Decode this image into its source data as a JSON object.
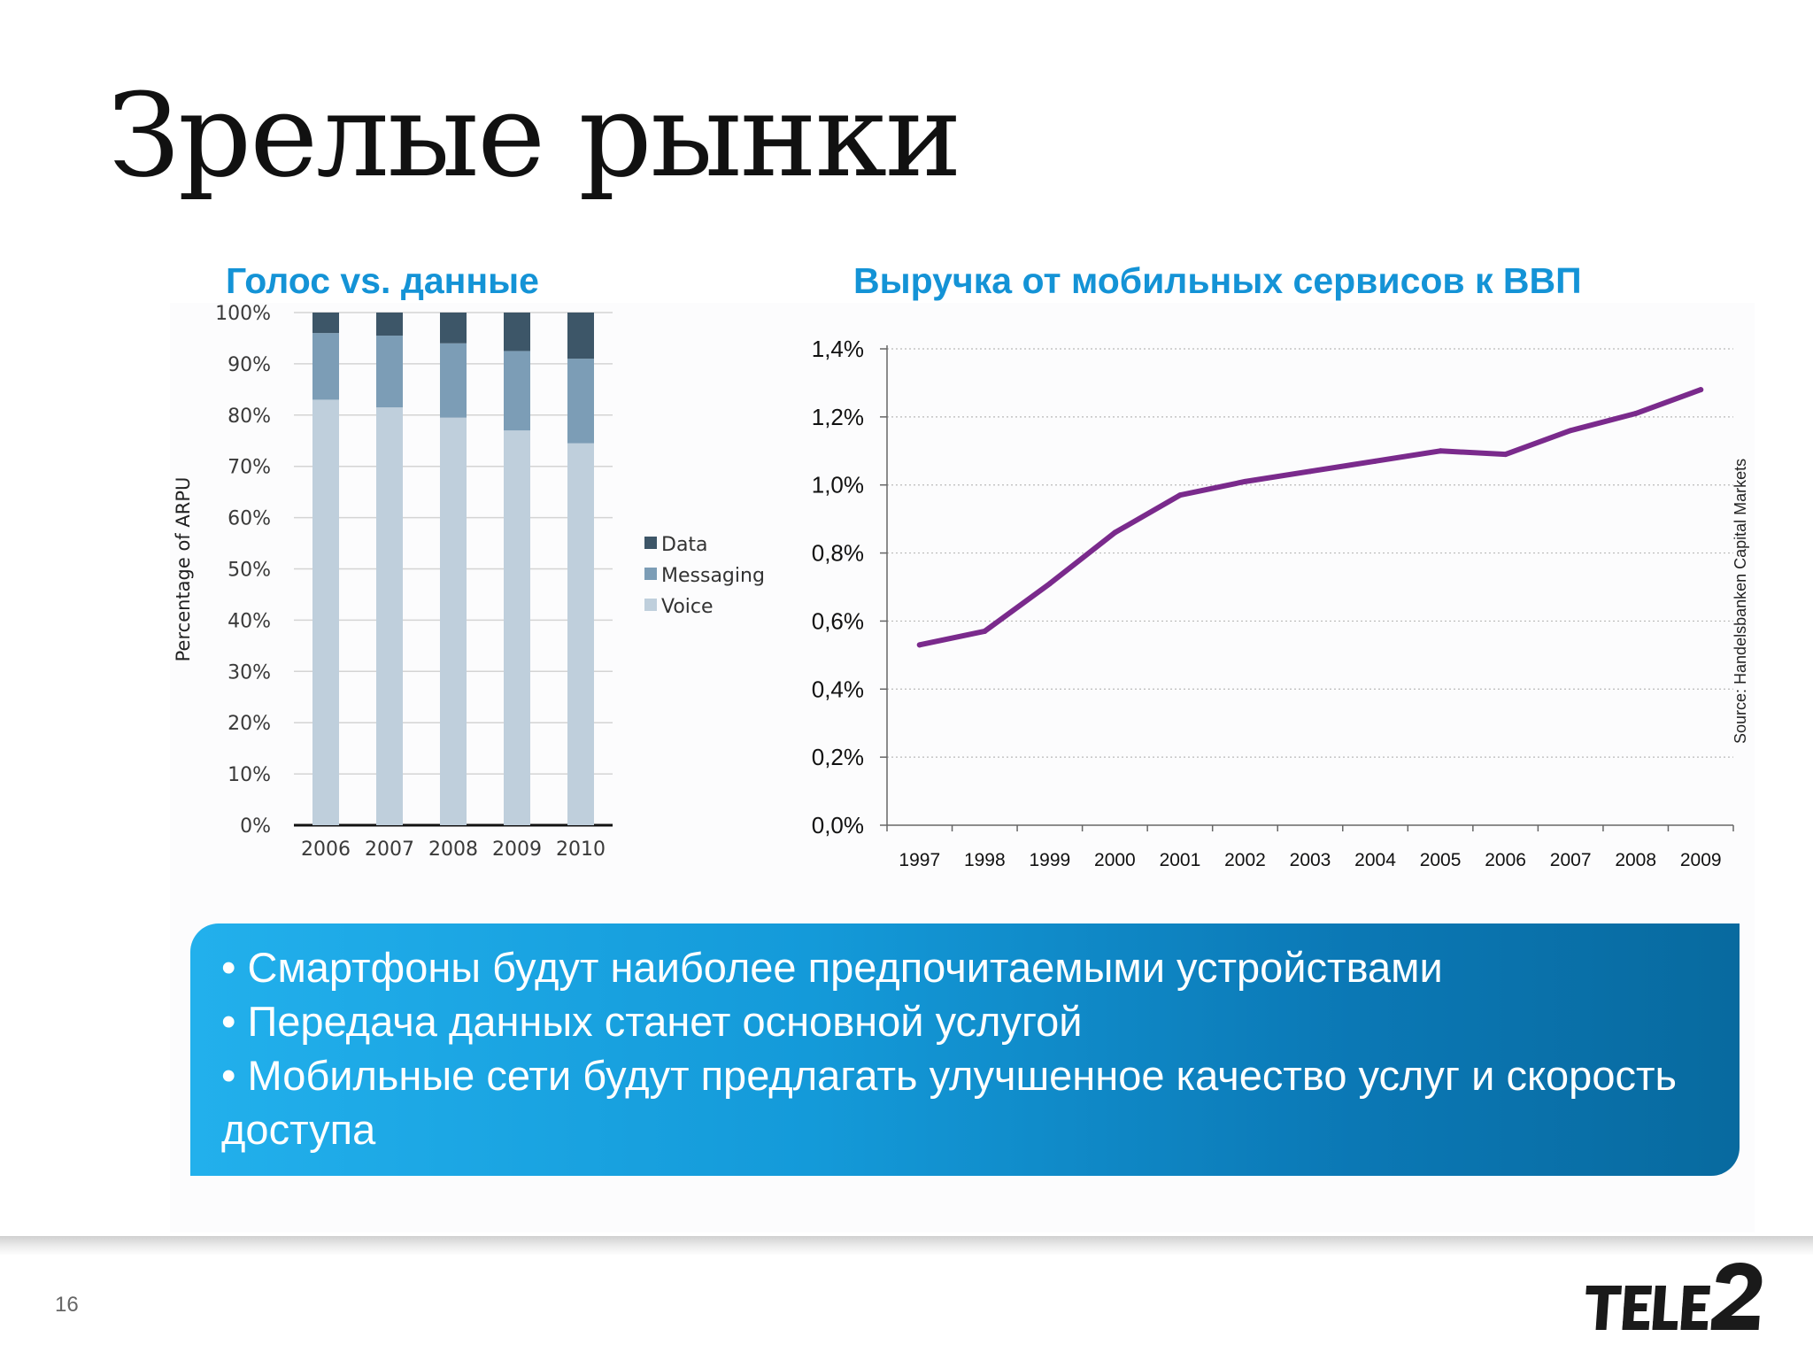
{
  "slide": {
    "title": "Зрелые рынки",
    "page_number": "16",
    "logo_text": "TELE2",
    "source_note": "Source: Handelsbanken Capital Markets"
  },
  "colors": {
    "title_blue": "#1493d6",
    "voice": "#bfcfdc",
    "messaging": "#7c9db6",
    "data": "#3d5668",
    "line": "#7a2a8c"
  },
  "bullets": [
    "• Смартфоны будут наиболее предпочитаемыми устройствами",
    "• Передача данных станет основной услугой",
    "• Мобильные сети будут предлагать улучшенное качество услуг и скорость доступа"
  ],
  "chart_data": [
    {
      "type": "bar",
      "stacked": true,
      "title": "Голос vs. данные",
      "ylabel": "Percentage of ARPU",
      "xlabel": "",
      "categories": [
        "2006",
        "2007",
        "2008",
        "2009",
        "2010"
      ],
      "ylim": [
        0,
        100
      ],
      "yticks": [
        "0%",
        "10%",
        "20%",
        "30%",
        "40%",
        "50%",
        "60%",
        "70%",
        "80%",
        "90%",
        "100%"
      ],
      "grid": true,
      "legend": "right",
      "series": [
        {
          "name": "Voice",
          "values": [
            83,
            81.5,
            79.5,
            77,
            74.5
          ]
        },
        {
          "name": "Messaging",
          "values": [
            13,
            14,
            14.5,
            15.5,
            16.5
          ]
        },
        {
          "name": "Data",
          "values": [
            4,
            4.5,
            6,
            7.5,
            9
          ]
        }
      ],
      "legend_order": [
        "Data",
        "Messaging",
        "Voice"
      ]
    },
    {
      "type": "line",
      "title": "Выручка от мобильных сервисов к ВВП",
      "xlabel": "",
      "ylabel": "",
      "x": [
        "1997",
        "1998",
        "1999",
        "2000",
        "2001",
        "2002",
        "2003",
        "2004",
        "2005",
        "2006",
        "2007",
        "2008",
        "2009"
      ],
      "values": [
        0.53,
        0.57,
        0.71,
        0.86,
        0.97,
        1.01,
        1.04,
        1.07,
        1.1,
        1.09,
        1.16,
        1.21,
        1.28
      ],
      "ylim": [
        0,
        1.4
      ],
      "yticks": [
        "0,0%",
        "0,2%",
        "0,4%",
        "0,6%",
        "0,8%",
        "1,0%",
        "1,2%",
        "1,4%"
      ],
      "grid": true,
      "legend": "none"
    }
  ]
}
